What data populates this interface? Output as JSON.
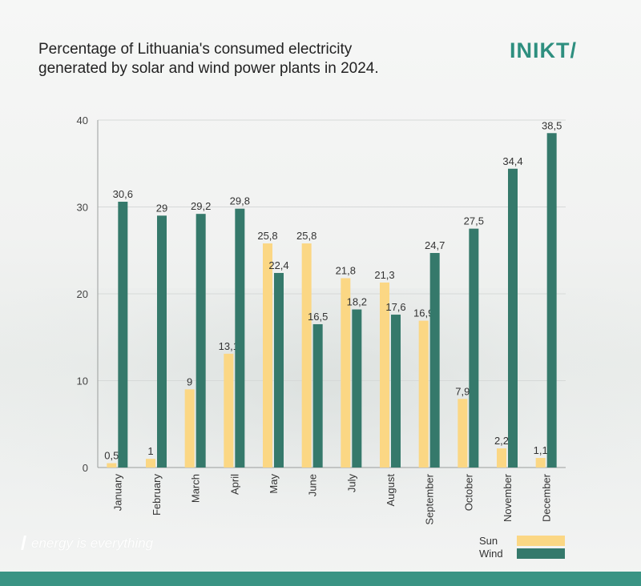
{
  "header": {
    "title_line1": "Percentage of Lithuania's consumed electricity",
    "title_line2": "generated by solar and wind power plants in 2024.",
    "logo_text": "INIKT/"
  },
  "footer": {
    "tagline": "energy is everything"
  },
  "colors": {
    "sun": "#fbd784",
    "wind": "#35796b",
    "brand": "#2e8f7f"
  },
  "chart_data": {
    "type": "bar",
    "title": "Percentage of Lithuania's consumed electricity generated by solar and wind power plants in 2024.",
    "xlabel": "",
    "ylabel": "",
    "ylim": [
      0,
      40
    ],
    "yticks": [
      "0",
      "10",
      "20",
      "30",
      "40"
    ],
    "grid": true,
    "legend_position": "bottom-right",
    "categories": [
      "January",
      "February",
      "March",
      "April",
      "May",
      "June",
      "July",
      "August",
      "September",
      "October",
      "November",
      "December"
    ],
    "series": [
      {
        "name": "Sun",
        "values": [
          0.5,
          1,
          9,
          13.1,
          25.8,
          25.8,
          21.8,
          21.3,
          16.9,
          7.9,
          2.2,
          1.1
        ],
        "labels": [
          "0,5",
          "1",
          "9",
          "13,1",
          "25,8",
          "25,8",
          "21,8",
          "21,3",
          "16,9",
          "7,9",
          "2,2",
          "1,1"
        ]
      },
      {
        "name": "Wind",
        "values": [
          30.6,
          29,
          29.2,
          29.8,
          22.4,
          16.5,
          18.2,
          17.6,
          24.7,
          27.5,
          34.4,
          38.5
        ],
        "labels": [
          "30,6",
          "29",
          "29,2",
          "29,8",
          "22,4",
          "16,5",
          "18,2",
          "17,6",
          "24,7",
          "27,5",
          "34,4",
          "38,5"
        ]
      }
    ]
  }
}
